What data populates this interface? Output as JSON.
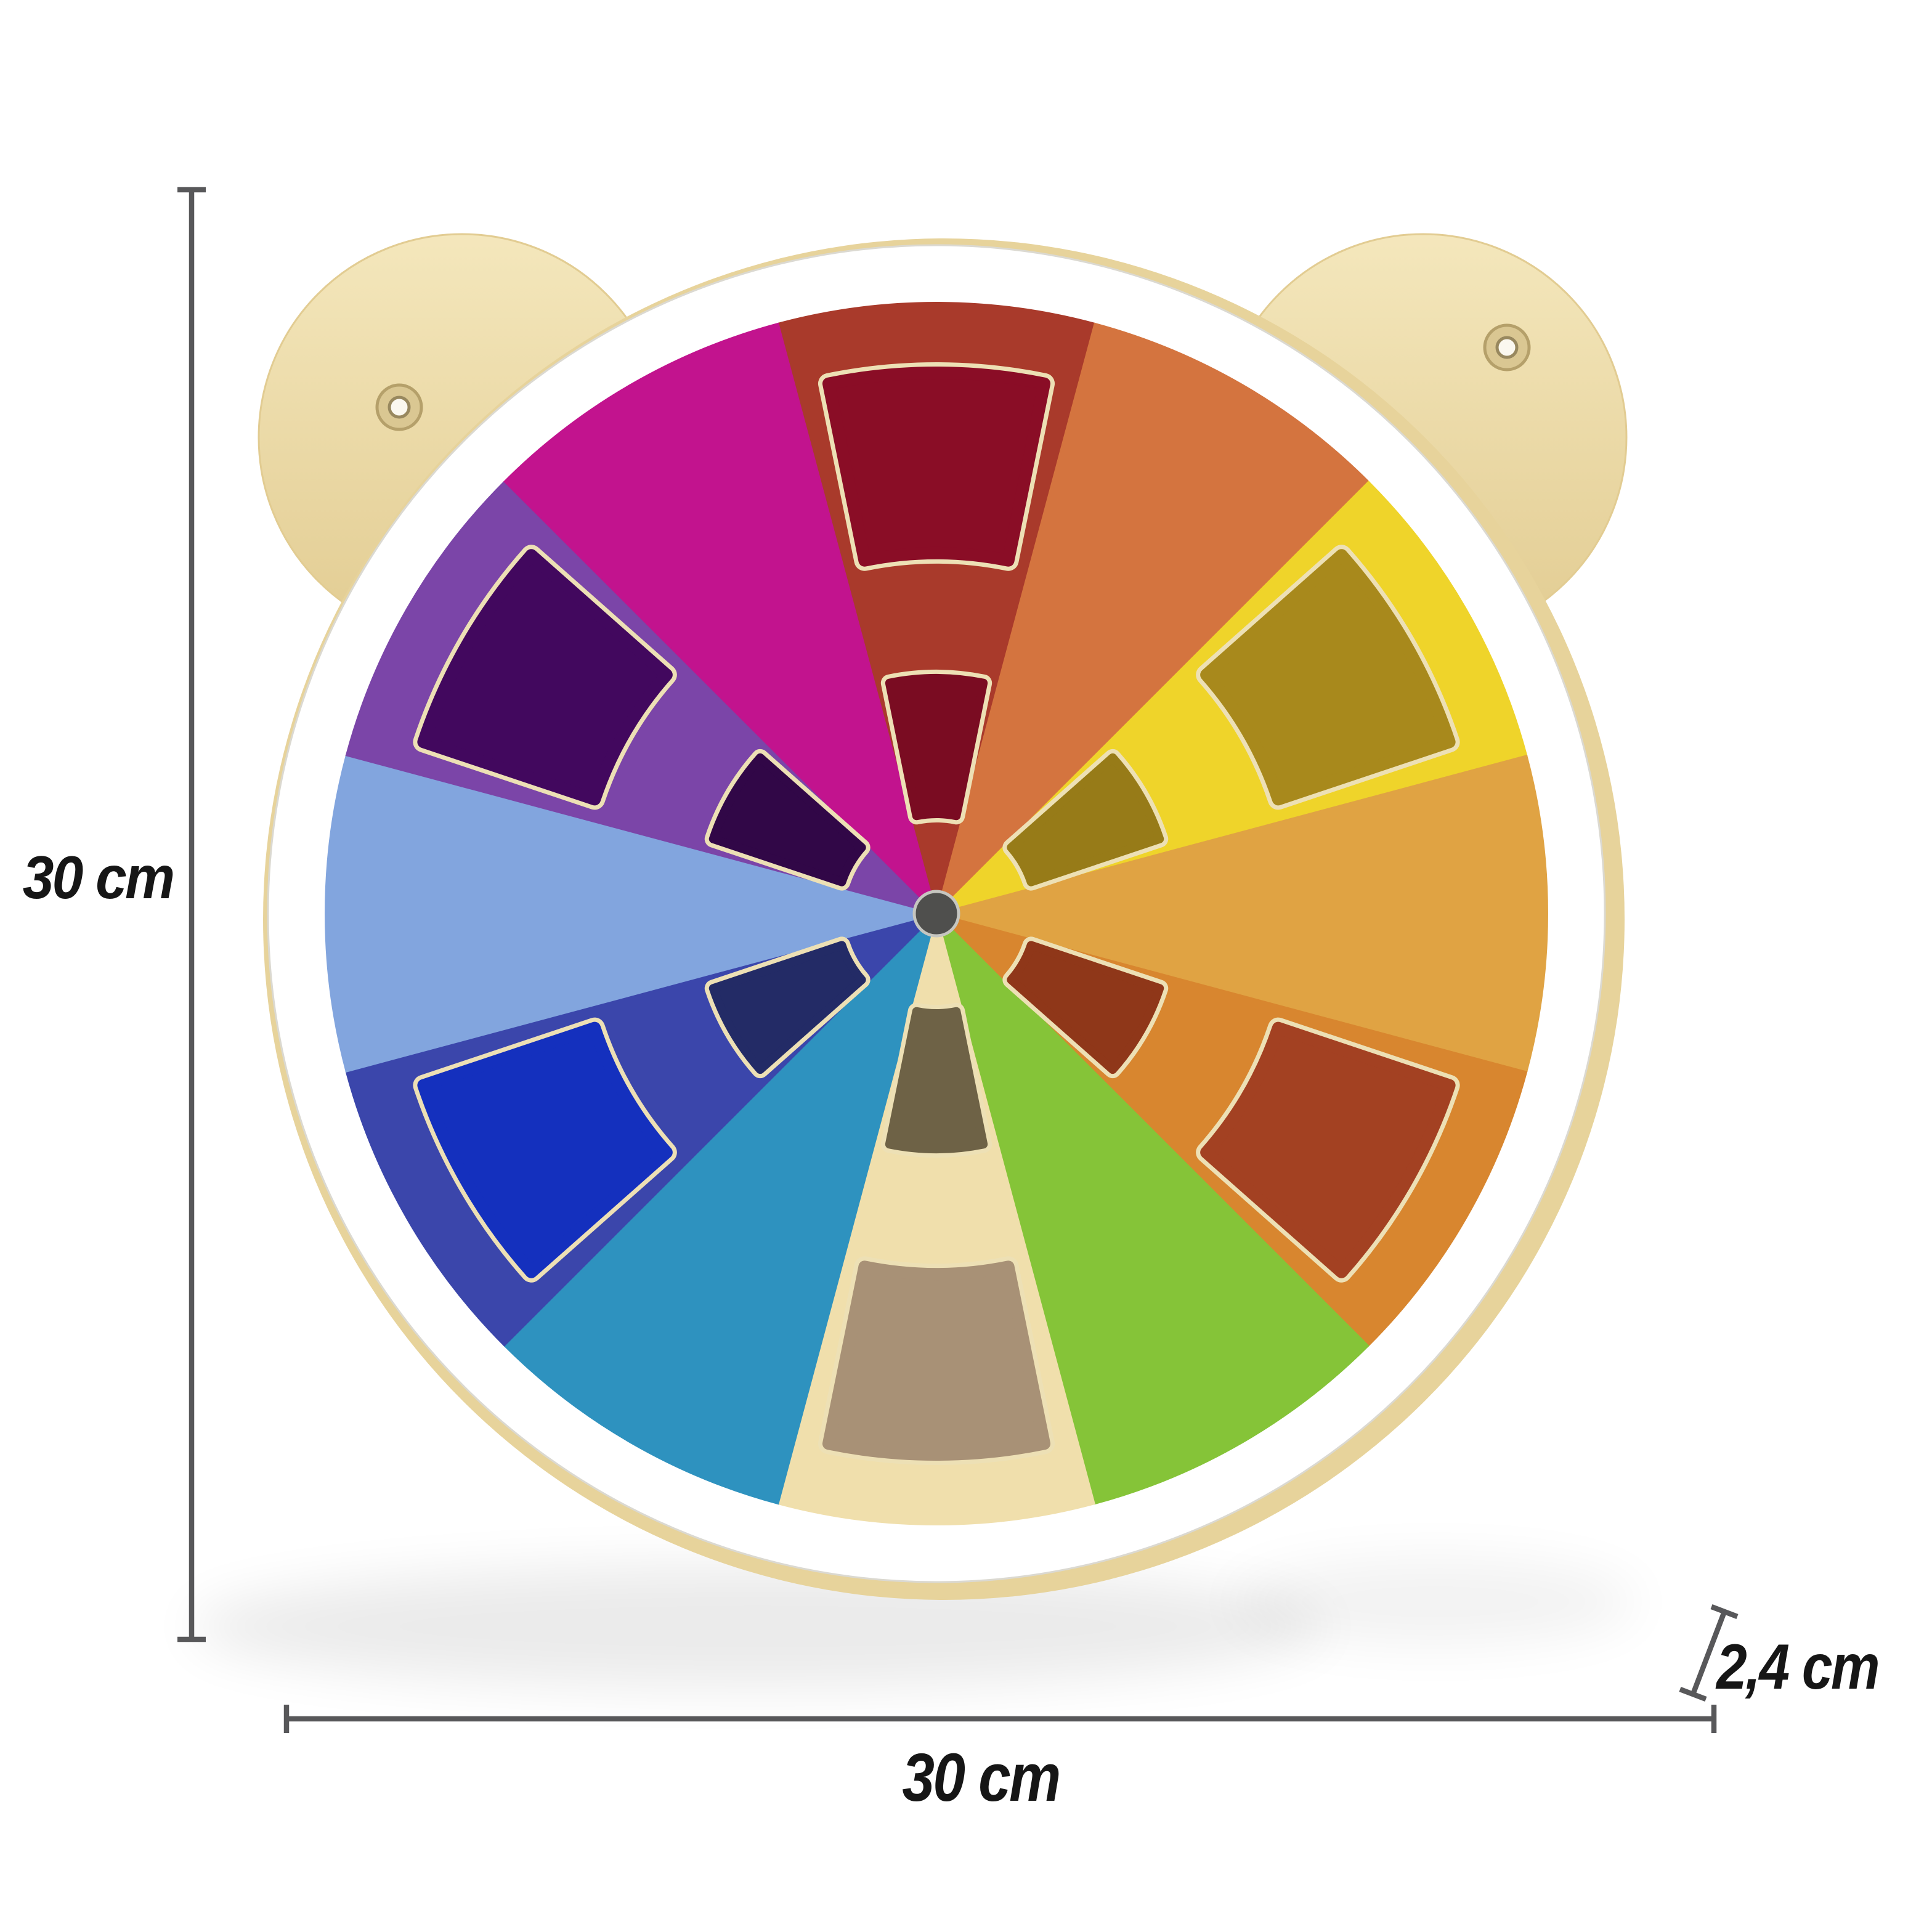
{
  "annotations": {
    "height_label": "30 cm",
    "width_label": "30 cm",
    "depth_label": "2,4 cm",
    "line_color": "#58585A",
    "text_color": "#161616"
  },
  "board": {
    "wood_light": "#F4E7BC",
    "wood_dark": "#E2CC92",
    "back_edge_color": "#E7D39B",
    "face_color": "#FFFFFF",
    "face_edge_color": "#DBD9D1",
    "window_rim_color": "#EDE0B5",
    "hub_color": "#4F4F4D",
    "hub_rim_color": "#C6C6C0",
    "screw_outer_color": "#DAC792",
    "screw_ring_color": "#B5A06A",
    "screw_hole_color": "#FBF8EF",
    "screw_hole_ring_color": "#98885E",
    "shadow_color": "#000000",
    "sectors": [
      {
        "name": "brick-red",
        "color": "#A93A2B",
        "windows": true,
        "window_color": "#8A0D26",
        "small_window_color": "#7A0C22"
      },
      {
        "name": "vermillion",
        "color": "#D4743F",
        "windows": false
      },
      {
        "name": "yellow",
        "color": "#EFD42A",
        "windows": true,
        "window_color": "#A8891C",
        "small_window_color": "#977B18"
      },
      {
        "name": "amber",
        "color": "#E0A343",
        "windows": false
      },
      {
        "name": "orange",
        "color": "#D8862F",
        "windows": true,
        "window_color": "#A34122",
        "small_window_color": "#8F3719"
      },
      {
        "name": "lime-green",
        "color": "#85C438",
        "windows": false
      },
      {
        "name": "natural-wood",
        "color": "#F0DFAC",
        "windows": true,
        "window_color": "#A89176",
        "small_window_color": "#6E6246"
      },
      {
        "name": "teal",
        "color": "#2E92BF",
        "windows": false
      },
      {
        "name": "royal-blue",
        "color": "#3B46AB",
        "windows": true,
        "window_color": "#1430BE",
        "small_window_color": "#232B66"
      },
      {
        "name": "periwinkle",
        "color": "#82A5DE",
        "windows": false
      },
      {
        "name": "purple",
        "color": "#7B45A8",
        "windows": true,
        "window_color": "#42085E",
        "small_window_color": "#310747"
      },
      {
        "name": "magenta",
        "color": "#C2138E",
        "windows": false
      }
    ]
  }
}
